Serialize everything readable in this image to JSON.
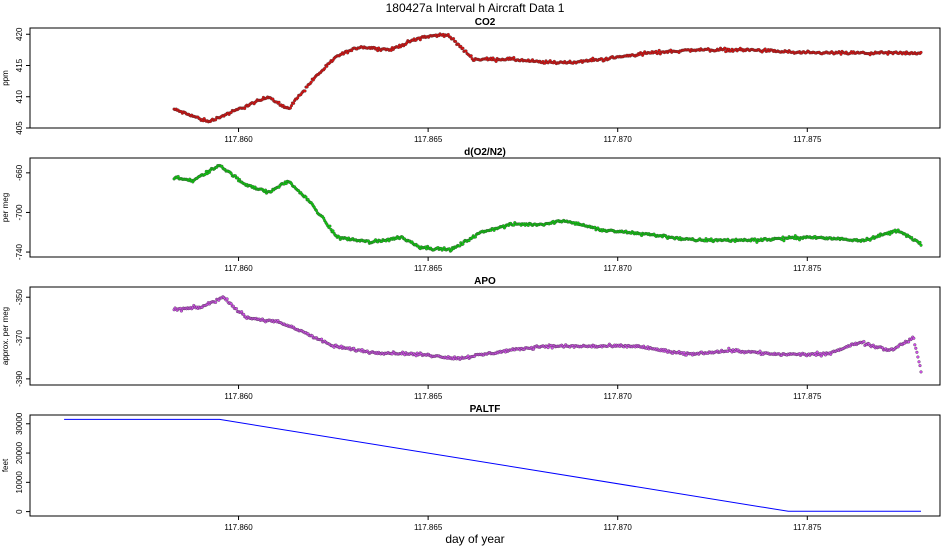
{
  "figure": {
    "title": "180427a   Interval h Aircraft Data 1",
    "xlabel": "day of year"
  },
  "chart_data": [
    {
      "type": "scatter",
      "title": "CO2",
      "ylabel": "ppm",
      "color": "#e01010",
      "xlim": [
        117.8545,
        117.8785
      ],
      "ylim": [
        405,
        421
      ],
      "xticks": [
        117.86,
        117.865,
        117.87,
        117.875
      ],
      "xtick_labels": [
        "117.860",
        "117.865",
        "117.870",
        "117.875"
      ],
      "yticks": [
        405,
        410,
        415,
        420
      ],
      "ytick_labels": [
        "405",
        "410",
        "415",
        "420"
      ],
      "x": [
        117.8583,
        117.8592,
        117.86,
        117.8608,
        117.8613,
        117.862,
        117.8626,
        117.8632,
        117.864,
        117.8648,
        117.8655,
        117.8662,
        117.8672,
        117.868,
        117.8688,
        117.8696,
        117.8708,
        117.872,
        117.8735,
        117.875,
        117.8765,
        117.878
      ],
      "y": [
        408,
        406,
        408,
        410,
        408,
        413,
        416.5,
        418,
        417.5,
        419.5,
        420,
        416,
        416,
        415.5,
        415.5,
        416,
        417,
        417.5,
        417.5,
        417,
        417,
        417
      ]
    },
    {
      "type": "scatter",
      "title": "d(O2/N2)",
      "ylabel": "per meg",
      "color": "#10d010",
      "xlim": [
        117.8545,
        117.8785
      ],
      "ylim": [
        -745,
        -645
      ],
      "xticks": [
        117.86,
        117.865,
        117.87,
        117.875
      ],
      "xtick_labels": [
        "117.860",
        "117.865",
        "117.870",
        "117.875"
      ],
      "yticks": [
        -660,
        -700,
        -740
      ],
      "ytick_labels": [
        "-660",
        "-700",
        "-740"
      ],
      "x": [
        117.8583,
        117.8588,
        117.8595,
        117.8601,
        117.8608,
        117.8613,
        117.8619,
        117.8626,
        117.8635,
        117.8643,
        117.8648,
        117.8656,
        117.8664,
        117.8672,
        117.868,
        117.8686,
        117.8696,
        117.8708,
        117.872,
        117.8735,
        117.875,
        117.8765,
        117.8774,
        117.878
      ],
      "y": [
        -665,
        -668,
        -652,
        -670,
        -680,
        -668,
        -690,
        -725,
        -730,
        -725,
        -735,
        -738,
        -720,
        -712,
        -712,
        -708,
        -718,
        -722,
        -728,
        -728,
        -725,
        -728,
        -718,
        -732
      ]
    },
    {
      "type": "scatter",
      "title": "APO",
      "ylabel": "approx. per meg",
      "color": "#d050e8",
      "xlim": [
        117.8545,
        117.8785
      ],
      "ylim": [
        -393,
        -345
      ],
      "xticks": [
        117.86,
        117.865,
        117.87,
        117.875
      ],
      "xtick_labels": [
        "117.860",
        "117.865",
        "117.870",
        "117.875"
      ],
      "yticks": [
        -350,
        -370,
        -390
      ],
      "ytick_labels": [
        "-350",
        "-370",
        "-390"
      ],
      "x": [
        117.8583,
        117.859,
        117.8596,
        117.8602,
        117.861,
        117.8616,
        117.8625,
        117.8635,
        117.8648,
        117.8658,
        117.8668,
        117.868,
        117.8692,
        117.8705,
        117.8718,
        117.873,
        117.8742,
        117.8755,
        117.8764,
        117.8772,
        117.8778,
        117.878
      ],
      "y": [
        -356,
        -355,
        -350,
        -360,
        -362,
        -366,
        -374,
        -377,
        -378,
        -380,
        -377,
        -374,
        -374,
        -374,
        -378,
        -376,
        -378,
        -378,
        -372,
        -376,
        -370,
        -386
      ]
    },
    {
      "type": "line",
      "title": "PALTF",
      "ylabel": "feet",
      "color": "#0000ff",
      "xlim": [
        117.8545,
        117.8785
      ],
      "ylim": [
        -1500,
        33000
      ],
      "xticks": [
        117.86,
        117.865,
        117.87,
        117.875
      ],
      "xtick_labels": [
        "117.860",
        "117.865",
        "117.870",
        "117.875"
      ],
      "yticks": [
        0,
        10000,
        20000,
        30000
      ],
      "ytick_labels": [
        "0",
        "10000",
        "20000",
        "30000"
      ],
      "x": [
        117.8554,
        117.8595,
        117.8745,
        117.878
      ],
      "y": [
        31500,
        31500,
        100,
        100
      ]
    }
  ]
}
